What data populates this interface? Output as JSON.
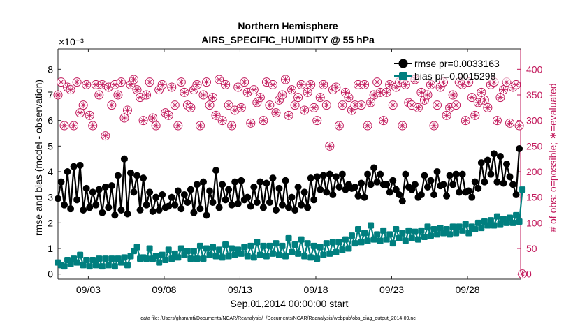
{
  "colors": {
    "rmse": "#000000",
    "bias": "#007f7f",
    "obs": "#c2185b",
    "axis": "#262626"
  },
  "footnote": "data file: /Users/gharamti/Documents/NCAR/Reanalysis/~/Documents/NCAR/Reanalysis/webpub/obs_diag_output_2014-09.nc",
  "chart_data": {
    "type": "line",
    "title": [
      "Northern Hemisphere",
      "AIRS_SPECIFIC_HUMIDITY @ 55 hPa"
    ],
    "xlabel": "Sep.01,2014 00:00:00 start",
    "ylabel": "rmse and bias (model - observation)",
    "ylabel_right": "# of obs: o=possible; ∗=evaluated",
    "y_exponent": "×10⁻³",
    "xlim": [
      1,
      31.5
    ],
    "ylim": [
      -0.2,
      8.8
    ],
    "ylim_right": [
      -10,
      440
    ],
    "x_ticks": [
      3,
      8,
      13,
      18,
      23,
      28
    ],
    "x_tick_labels": [
      "09/03",
      "09/08",
      "09/13",
      "09/18",
      "09/23",
      "09/28"
    ],
    "y_ticks": [
      0,
      1,
      2,
      3,
      4,
      5,
      6,
      7,
      8
    ],
    "y_ticks_right": [
      0,
      50,
      100,
      150,
      200,
      250,
      300,
      350,
      400
    ],
    "grid": false,
    "legend_position": "top-right",
    "series": [
      {
        "name": "rmse pr=0.0033163",
        "axis": "left",
        "marker": "circle",
        "values": [
          2.95,
          3.6,
          2.7,
          4.0,
          2.55,
          4.2,
          2.9,
          4.25,
          2.5,
          3.35,
          2.6,
          3.2,
          2.7,
          3.3,
          2.4,
          3.4,
          2.6,
          3.45,
          2.3,
          3.85,
          2.5,
          4.5,
          2.35,
          3.95,
          3.2,
          3.85,
          2.5,
          3.75,
          2.7,
          3.2,
          2.45,
          3.0,
          2.5,
          3.1,
          2.6,
          2.65,
          3.0,
          2.7,
          3.25,
          2.55,
          3.1,
          2.8,
          3.3,
          2.4,
          3.5,
          2.55,
          3.6,
          2.3,
          3.25,
          2.8,
          4.05,
          2.6,
          3.5,
          2.9,
          3.3,
          2.7,
          3.6,
          2.75,
          3.65,
          2.9,
          3.0,
          2.65,
          3.4,
          2.8,
          3.6,
          2.6,
          3.55,
          2.8,
          3.75,
          2.5,
          3.35,
          2.7,
          3.65,
          2.6,
          3.0,
          2.5,
          3.4,
          2.7,
          3.2,
          2.6,
          3.75,
          2.9,
          3.8,
          3.3,
          3.85,
          3.2,
          3.9,
          3.1,
          3.8,
          3.4,
          3.9,
          3.3,
          3.5,
          3.35,
          3.4,
          3.05,
          3.55,
          3.0,
          3.9,
          3.5,
          4.15,
          3.6,
          3.9,
          3.5,
          3.5,
          3.2,
          3.65,
          3.3,
          3.1,
          2.85,
          3.9,
          3.4,
          3.3,
          3.5,
          3.0,
          3.1,
          3.85,
          3.4,
          3.65,
          3.1,
          4.0,
          3.45,
          3.5,
          3.05,
          3.85,
          3.5,
          3.9,
          3.2,
          3.9,
          3.2,
          3.25,
          3.0,
          3.6,
          3.35,
          4.35,
          3.6,
          4.45,
          3.9,
          4.7,
          3.6,
          4.6,
          3.55,
          4.3,
          3.8,
          3.5,
          3.1,
          4.9
        ],
        "x_start": 1,
        "x_step": 0.2083
      },
      {
        "name": "bias pr=0.0015298",
        "axis": "left",
        "marker": "square",
        "values": [
          0.45,
          0.35,
          0.3,
          0.55,
          0.4,
          0.6,
          0.45,
          0.75,
          0.35,
          0.55,
          0.3,
          0.55,
          0.35,
          0.6,
          0.3,
          0.6,
          0.35,
          0.6,
          0.3,
          0.6,
          0.45,
          0.65,
          0.35,
          0.7,
          0.9,
          1.05,
          0.6,
          0.65,
          0.6,
          1.0,
          0.6,
          0.7,
          0.45,
          0.75,
          0.55,
          0.95,
          0.6,
          0.8,
          0.65,
          1.0,
          0.75,
          0.9,
          0.6,
          0.9,
          0.6,
          1.1,
          0.6,
          1.0,
          0.75,
          1.05,
          0.7,
          0.95,
          0.65,
          1.15,
          0.7,
          1.0,
          0.75,
          0.95,
          0.8,
          1.05,
          0.7,
          1.1,
          0.65,
          1.25,
          0.75,
          1.1,
          0.7,
          1.1,
          0.8,
          1.2,
          0.75,
          1.1,
          0.7,
          1.4,
          0.85,
          1.15,
          0.8,
          1.35,
          0.7,
          1.2,
          0.65,
          1.1,
          0.6,
          1.05,
          0.75,
          1.2,
          0.8,
          1.25,
          0.85,
          1.25,
          0.95,
          1.35,
          1.0,
          1.5,
          1.2,
          1.75,
          1.25,
          1.6,
          1.3,
          1.9,
          1.35,
          1.55,
          1.3,
          1.7,
          1.35,
          1.55,
          1.2,
          1.75,
          1.4,
          1.6,
          1.3,
          1.7,
          1.4,
          1.65,
          1.35,
          1.7,
          1.45,
          1.85,
          1.5,
          1.75,
          1.55,
          1.8,
          1.6,
          1.75,
          1.55,
          1.85,
          1.6,
          1.85,
          1.7,
          1.95,
          1.6,
          1.85,
          1.75,
          2.0,
          1.8,
          2.05,
          1.9,
          2.1,
          1.9,
          2.25,
          1.95,
          2.15,
          2.0,
          2.2,
          2.0,
          2.3,
          2.05,
          3.3
        ],
        "x_start": 1,
        "x_step": 0.2083
      },
      {
        "name": "obs possible",
        "axis": "right",
        "marker": "circle-open",
        "values": [
          350,
          375,
          290,
          365,
          360,
          290,
          375,
          315,
          330,
          370,
          310,
          290,
          370,
          350,
          370,
          270,
          365,
          330,
          370,
          350,
          375,
          305,
          320,
          370,
          380,
          360,
          345,
          300,
          350,
          375,
          305,
          290,
          360,
          370,
          315,
          310,
          365,
          330,
          290,
          375,
          355,
          330,
          325,
          360,
          370,
          290,
          350,
          375,
          330,
          345,
          310,
          380,
          300,
          370,
          330,
          290,
          320,
          365,
          325,
          375,
          355,
          295,
          360,
          335,
          345,
          300,
          375,
          330,
          370,
          315,
          340,
          350,
          380,
          310,
          360,
          330,
          345,
          370,
          320,
          355,
          370,
          325,
          300,
          345,
          370,
          330,
          250,
          360,
          365,
          290,
          330,
          355,
          345,
          320,
          330,
          370,
          330,
          370,
          290,
          335,
          350,
          375,
          355,
          300,
          355,
          370,
          330,
          365,
          375,
          290,
          370,
          335,
          330,
          380,
          325,
          355,
          340,
          350,
          370,
          290,
          330,
          365,
          375,
          310,
          325,
          350,
          330,
          375,
          370,
          300,
          375,
          345,
          310,
          335,
          355,
          340,
          325,
          370,
          375,
          300,
          345,
          360,
          375,
          295,
          365,
          370,
          290,
          0
        ],
        "x_start": 1,
        "x_step": 0.2083
      },
      {
        "name": "obs evaluated",
        "axis": "right",
        "marker": "star",
        "values": [
          350,
          375,
          290,
          365,
          360,
          290,
          375,
          315,
          330,
          370,
          310,
          290,
          370,
          350,
          370,
          270,
          365,
          330,
          370,
          350,
          375,
          305,
          320,
          370,
          380,
          360,
          345,
          300,
          350,
          375,
          305,
          290,
          360,
          370,
          315,
          310,
          365,
          330,
          290,
          375,
          355,
          330,
          325,
          360,
          370,
          290,
          350,
          375,
          330,
          345,
          310,
          380,
          300,
          370,
          330,
          290,
          320,
          365,
          325,
          375,
          355,
          295,
          360,
          335,
          345,
          300,
          375,
          330,
          370,
          315,
          340,
          350,
          380,
          310,
          360,
          330,
          345,
          370,
          320,
          355,
          370,
          325,
          300,
          345,
          370,
          330,
          250,
          360,
          365,
          290,
          330,
          355,
          345,
          320,
          330,
          370,
          330,
          370,
          290,
          335,
          350,
          375,
          355,
          300,
          355,
          370,
          330,
          365,
          375,
          290,
          370,
          335,
          330,
          380,
          325,
          355,
          340,
          350,
          370,
          290,
          330,
          365,
          375,
          310,
          325,
          350,
          330,
          375,
          370,
          300,
          375,
          345,
          310,
          335,
          355,
          340,
          325,
          370,
          375,
          300,
          345,
          360,
          375,
          295,
          365,
          370,
          290,
          0
        ],
        "x_start": 1,
        "x_step": 0.2083
      }
    ]
  }
}
